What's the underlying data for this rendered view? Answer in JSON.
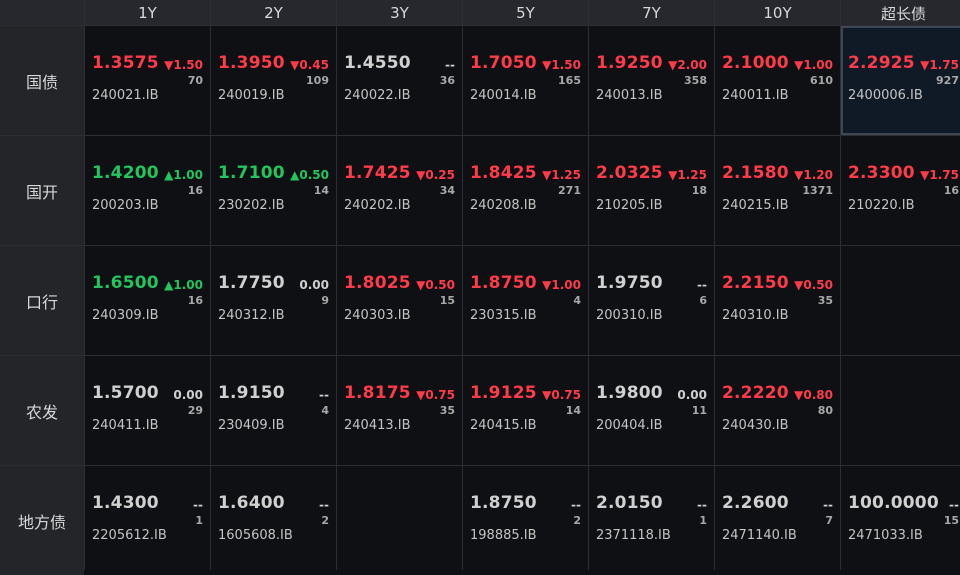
{
  "columns": [
    "1Y",
    "2Y",
    "3Y",
    "5Y",
    "7Y",
    "10Y",
    "超长债"
  ],
  "rows": [
    {
      "label": "国债",
      "cells": [
        {
          "yield": "1.3575",
          "change": "▼1.50",
          "volume": "70",
          "code": "240021.IB",
          "dir": "up"
        },
        {
          "yield": "1.3950",
          "change": "▼0.45",
          "volume": "109",
          "code": "240019.IB",
          "dir": "up"
        },
        {
          "yield": "1.4550",
          "change": "--",
          "volume": "36",
          "code": "240022.IB",
          "dir": "flat"
        },
        {
          "yield": "1.7050",
          "change": "▼1.50",
          "volume": "165",
          "code": "240014.IB",
          "dir": "up"
        },
        {
          "yield": "1.9250",
          "change": "▼2.00",
          "volume": "358",
          "code": "240013.IB",
          "dir": "up"
        },
        {
          "yield": "2.1000",
          "change": "▼1.00",
          "volume": "610",
          "code": "240011.IB",
          "dir": "up"
        },
        {
          "yield": "2.2925",
          "change": "▼1.75",
          "volume": "927",
          "code": "2400006.IB",
          "dir": "up",
          "selected": true
        }
      ]
    },
    {
      "label": "国开",
      "cells": [
        {
          "yield": "1.4200",
          "change": "▲1.00",
          "volume": "16",
          "code": "200203.IB",
          "dir": "down"
        },
        {
          "yield": "1.7100",
          "change": "▲0.50",
          "volume": "14",
          "code": "230202.IB",
          "dir": "down"
        },
        {
          "yield": "1.7425",
          "change": "▼0.25",
          "volume": "34",
          "code": "240202.IB",
          "dir": "up"
        },
        {
          "yield": "1.8425",
          "change": "▼1.25",
          "volume": "271",
          "code": "240208.IB",
          "dir": "up"
        },
        {
          "yield": "2.0325",
          "change": "▼1.25",
          "volume": "18",
          "code": "210205.IB",
          "dir": "up"
        },
        {
          "yield": "2.1580",
          "change": "▼1.20",
          "volume": "1371",
          "code": "240215.IB",
          "dir": "up"
        },
        {
          "yield": "2.3300",
          "change": "▼1.75",
          "volume": "16",
          "code": "210220.IB",
          "dir": "up"
        }
      ]
    },
    {
      "label": "口行",
      "cells": [
        {
          "yield": "1.6500",
          "change": "▲1.00",
          "volume": "16",
          "code": "240309.IB",
          "dir": "down"
        },
        {
          "yield": "1.7750",
          "change": "0.00",
          "volume": "9",
          "code": "240312.IB",
          "dir": "flat"
        },
        {
          "yield": "1.8025",
          "change": "▼0.50",
          "volume": "15",
          "code": "240303.IB",
          "dir": "up"
        },
        {
          "yield": "1.8750",
          "change": "▼1.00",
          "volume": "4",
          "code": "230315.IB",
          "dir": "up"
        },
        {
          "yield": "1.9750",
          "change": "--",
          "volume": "6",
          "code": "200310.IB",
          "dir": "flat"
        },
        {
          "yield": "2.2150",
          "change": "▼0.50",
          "volume": "35",
          "code": "240310.IB",
          "dir": "up"
        },
        null
      ]
    },
    {
      "label": "农发",
      "cells": [
        {
          "yield": "1.5700",
          "change": "0.00",
          "volume": "29",
          "code": "240411.IB",
          "dir": "flat"
        },
        {
          "yield": "1.9150",
          "change": "--",
          "volume": "4",
          "code": "230409.IB",
          "dir": "flat"
        },
        {
          "yield": "1.8175",
          "change": "▼0.75",
          "volume": "35",
          "code": "240413.IB",
          "dir": "up"
        },
        {
          "yield": "1.9125",
          "change": "▼0.75",
          "volume": "14",
          "code": "240415.IB",
          "dir": "up"
        },
        {
          "yield": "1.9800",
          "change": "0.00",
          "volume": "11",
          "code": "200404.IB",
          "dir": "flat"
        },
        {
          "yield": "2.2220",
          "change": "▼0.80",
          "volume": "80",
          "code": "240430.IB",
          "dir": "up"
        },
        null
      ]
    },
    {
      "label": "地方债",
      "cells": [
        {
          "yield": "1.4300",
          "change": "--",
          "volume": "1",
          "code": "2205612.IB",
          "dir": "flat"
        },
        {
          "yield": "1.6400",
          "change": "--",
          "volume": "2",
          "code": "1605608.IB",
          "dir": "flat"
        },
        null,
        {
          "yield": "1.8750",
          "change": "--",
          "volume": "2",
          "code": "198885.IB",
          "dir": "flat"
        },
        {
          "yield": "2.0150",
          "change": "--",
          "volume": "1",
          "code": "2371118.IB",
          "dir": "flat"
        },
        {
          "yield": "2.2600",
          "change": "--",
          "volume": "7",
          "code": "2471140.IB",
          "dir": "flat"
        },
        {
          "yield": "100.0000",
          "change": "--",
          "volume": "15",
          "code": "2471033.IB",
          "dir": "flat"
        }
      ]
    }
  ],
  "colors": {
    "up": "#ff3b4a",
    "down": "#22c55e",
    "flat": "#d0d0d0",
    "background": "#0f1013",
    "header": "#26282d"
  }
}
